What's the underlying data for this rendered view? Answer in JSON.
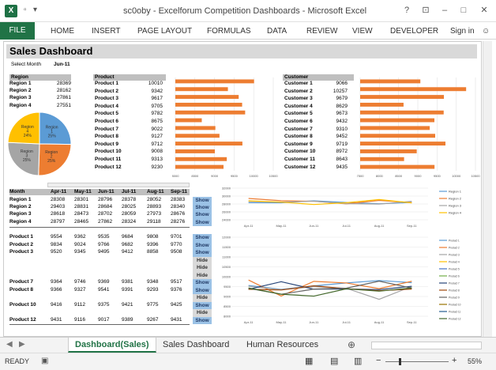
{
  "window": {
    "title": "sc0oby - Excelforum Competition Dashboards - Microsoft Excel",
    "help": "?",
    "controls": [
      "–",
      "□",
      "✕"
    ]
  },
  "ribbon": {
    "tabs": [
      "FILE",
      "HOME",
      "INSERT",
      "PAGE LAYOUT",
      "FORMULAS",
      "DATA",
      "REVIEW",
      "VIEW",
      "DEVELOPER"
    ],
    "signin": "Sign in"
  },
  "dashboard": {
    "title": "Sales Dashboard",
    "select_label": "Select Month",
    "select_value": "Jun-11"
  },
  "region": {
    "header": "Region",
    "rows": [
      [
        "Region 1",
        "28369"
      ],
      [
        "Region 2",
        "28162"
      ],
      [
        "Region 3",
        "27861"
      ],
      [
        "Region 4",
        "27551"
      ]
    ]
  },
  "pie": {
    "slices": [
      {
        "label": "Region\n1",
        "pct": "25%",
        "value": 25,
        "color": "#5b9bd5"
      },
      {
        "label": "Region\n2",
        "pct": "25%",
        "value": 25,
        "color": "#ed7d31"
      },
      {
        "label": "Region\n3",
        "pct": "25%",
        "value": 25,
        "color": "#a5a5a5"
      },
      {
        "label": "Region\n4",
        "pct": "24%",
        "value": 24,
        "color": "#ffc000"
      }
    ]
  },
  "product": {
    "header": "Product",
    "rows": [
      [
        "Product 1",
        "10010"
      ],
      [
        "Product 2",
        "9342"
      ],
      [
        "Product 3",
        "9617"
      ],
      [
        "Product 4",
        "9705"
      ],
      [
        "Product 5",
        "9782"
      ],
      [
        "Product 6",
        "8675"
      ],
      [
        "Product 7",
        "9022"
      ],
      [
        "Product 8",
        "9127"
      ],
      [
        "Product 9",
        "9712"
      ],
      [
        "Product 10",
        "9008"
      ],
      [
        "Product 11",
        "9313"
      ],
      [
        "Product 12",
        "9230"
      ]
    ]
  },
  "customer": {
    "header": "Customer",
    "rows": [
      [
        "Customer 1",
        "9066"
      ],
      [
        "Customer 2",
        "10257"
      ],
      [
        "Customer 3",
        "9679"
      ],
      [
        "Customer 4",
        "8629"
      ],
      [
        "Customer 5",
        "9673"
      ],
      [
        "Customer 6",
        "9432"
      ],
      [
        "Customer 7",
        "9310"
      ],
      [
        "Customer 8",
        "9452"
      ],
      [
        "Customer 9",
        "9719"
      ],
      [
        "Customer 10",
        "8972"
      ],
      [
        "Customer 11",
        "8643"
      ],
      [
        "Customer 12",
        "9435"
      ]
    ]
  },
  "chart_data": [
    {
      "type": "bar",
      "categories": [
        "Product 1",
        "Product 2",
        "Product 3",
        "Product 4",
        "Product 5",
        "Product 6",
        "Product 7",
        "Product 8",
        "Product 9",
        "Product 10",
        "Product 11",
        "Product 12"
      ],
      "values": [
        10010,
        9342,
        9617,
        9705,
        9782,
        8675,
        9022,
        9127,
        9712,
        9008,
        9313,
        9230
      ],
      "xlim": [
        8000,
        10500
      ],
      "ticks": [
        "8000",
        "8500",
        "9000",
        "9500",
        "10000",
        "10500"
      ],
      "color": "#ed7d31"
    },
    {
      "type": "bar",
      "categories": [
        "Customer 1",
        "Customer 2",
        "Customer 3",
        "Customer 4",
        "Customer 5",
        "Customer 6",
        "Customer 7",
        "Customer 8",
        "Customer 9",
        "Customer 10",
        "Customer 11",
        "Customer 12"
      ],
      "values": [
        9066,
        10257,
        9679,
        8629,
        9673,
        9432,
        9310,
        9452,
        9719,
        8972,
        8643,
        9435
      ],
      "xlim": [
        7500,
        10500
      ],
      "ticks": [
        "7500",
        "8000",
        "8500",
        "9000",
        "9500",
        "10000",
        "10500"
      ],
      "color": "#ed7d31"
    },
    {
      "type": "line",
      "x": [
        "Apr-11",
        "May-11",
        "Jun-11",
        "Jul-11",
        "Aug-11",
        "Sep-11"
      ],
      "ylim": [
        24000,
        32000
      ],
      "yticks": [
        "24000",
        "26000",
        "28000",
        "30000",
        "32000"
      ],
      "series": [
        {
          "name": "Region 1",
          "values": [
            28308,
            28301,
            28796,
            28378,
            28052,
            28383
          ],
          "color": "#5b9bd5"
        },
        {
          "name": "Region 2",
          "values": [
            29403,
            28831,
            28684,
            28025,
            28893,
            28340
          ],
          "color": "#ed7d31"
        },
        {
          "name": "Region 3",
          "values": [
            28618,
            28473,
            28702,
            28059,
            27973,
            28676
          ],
          "color": "#a5a5a5"
        },
        {
          "name": "Region 4",
          "values": [
            28797,
            28465,
            27862,
            28324,
            29118,
            28276
          ],
          "color": "#ffc000"
        }
      ]
    },
    {
      "type": "line",
      "x": [
        "Apr-11",
        "May-11",
        "Jun-11",
        "Jul-11",
        "Aug-11",
        "Sep-11"
      ],
      "ylim": [
        8000,
        12000
      ],
      "yticks": [
        "8000",
        "8500",
        "9000",
        "9500",
        "10000",
        "10500",
        "11000",
        "11500",
        "12000"
      ],
      "series": [
        {
          "name": "Product 1",
          "values": [
            9554,
            9362,
            9535,
            9684,
            9808,
            9701
          ],
          "color": "#5b9bd5"
        },
        {
          "name": "Product 2",
          "values": [
            9834,
            9024,
            9766,
            9682,
            9396,
            9770
          ],
          "color": "#ed7d31"
        },
        {
          "name": "Product 3",
          "values": [
            9520,
            9345,
            9495,
            9412,
            8858,
            9508
          ],
          "color": "#a5a5a5"
        },
        {
          "name": "Product 7",
          "values": [
            9364,
            9746,
            9369,
            9381,
            9348,
            9517
          ],
          "color": "#264478"
        },
        {
          "name": "Product 8",
          "values": [
            9366,
            9327,
            9541,
            9391,
            9293,
            9376
          ],
          "color": "#9e480e"
        },
        {
          "name": "Product 10",
          "values": [
            9416,
            9112,
            9375,
            9421,
            9775,
            9425
          ],
          "color": "#636363"
        },
        {
          "name": "Product 12",
          "values": [
            9431,
            9116,
            9017,
            9389,
            9267,
            9431
          ],
          "color": "#43682b"
        }
      ],
      "legend": [
        "Product 1",
        "Product 2",
        "Product 3",
        "Product 4",
        "Product 5",
        "Product 6",
        "Product 7",
        "Product 8",
        "Product 9",
        "Product 10",
        "Product 11",
        "Product 12"
      ],
      "legend_colors": [
        "#5b9bd5",
        "#ed7d31",
        "#a5a5a5",
        "#ffc000",
        "#4472c4",
        "#70ad47",
        "#264478",
        "#9e480e",
        "#636363",
        "#997300",
        "#255e91",
        "#43682b"
      ]
    }
  ],
  "region_months": {
    "months": [
      "Month",
      "Apr-11",
      "May-11",
      "Jun-11",
      "Jul-11",
      "Aug-11",
      "Sep-11"
    ],
    "rows": [
      [
        "Region 1",
        "28308",
        "28301",
        "28796",
        "28378",
        "28052",
        "28383",
        "Show"
      ],
      [
        "Region 2",
        "29403",
        "28831",
        "28684",
        "28025",
        "28893",
        "28340",
        "Show"
      ],
      [
        "Region 3",
        "28618",
        "28473",
        "28702",
        "28059",
        "27973",
        "28676",
        "Show"
      ],
      [
        "Region 4",
        "28797",
        "28465",
        "27862",
        "28324",
        "29118",
        "28276",
        "Show"
      ]
    ]
  },
  "product_months": {
    "rows": [
      [
        "Product 1",
        "9554",
        "9362",
        "9535",
        "9684",
        "9808",
        "9701",
        "Show"
      ],
      [
        "Product 2",
        "9834",
        "9024",
        "9766",
        "9682",
        "9396",
        "9770",
        "Show"
      ],
      [
        "Product 3",
        "9520",
        "9345",
        "9495",
        "9412",
        "8858",
        "9508",
        "Show"
      ],
      [
        "",
        "",
        "",
        "",
        "",
        "",
        "",
        "Hide"
      ],
      [
        "",
        "",
        "",
        "",
        "",
        "",
        "",
        "Hide"
      ],
      [
        "",
        "",
        "",
        "",
        "",
        "",
        "",
        "Hide"
      ],
      [
        "Product 7",
        "9364",
        "9746",
        "9369",
        "9381",
        "9348",
        "9517",
        "Show"
      ],
      [
        "Product 8",
        "9366",
        "9327",
        "9541",
        "9391",
        "9293",
        "9376",
        "Show"
      ],
      [
        "",
        "",
        "",
        "",
        "",
        "",
        "",
        "Hide"
      ],
      [
        "Product 10",
        "9416",
        "9112",
        "9375",
        "9421",
        "9775",
        "9425",
        "Show"
      ],
      [
        "",
        "",
        "",
        "",
        "",
        "",
        "",
        "Hide"
      ],
      [
        "Product 12",
        "9431",
        "9116",
        "9017",
        "9389",
        "9267",
        "9431",
        "Show"
      ]
    ]
  },
  "sheet_tabs": [
    "Dashboard(Sales)",
    "Sales Dashboard",
    "Human Resources"
  ],
  "status": {
    "ready": "READY",
    "zoom": "55%"
  }
}
